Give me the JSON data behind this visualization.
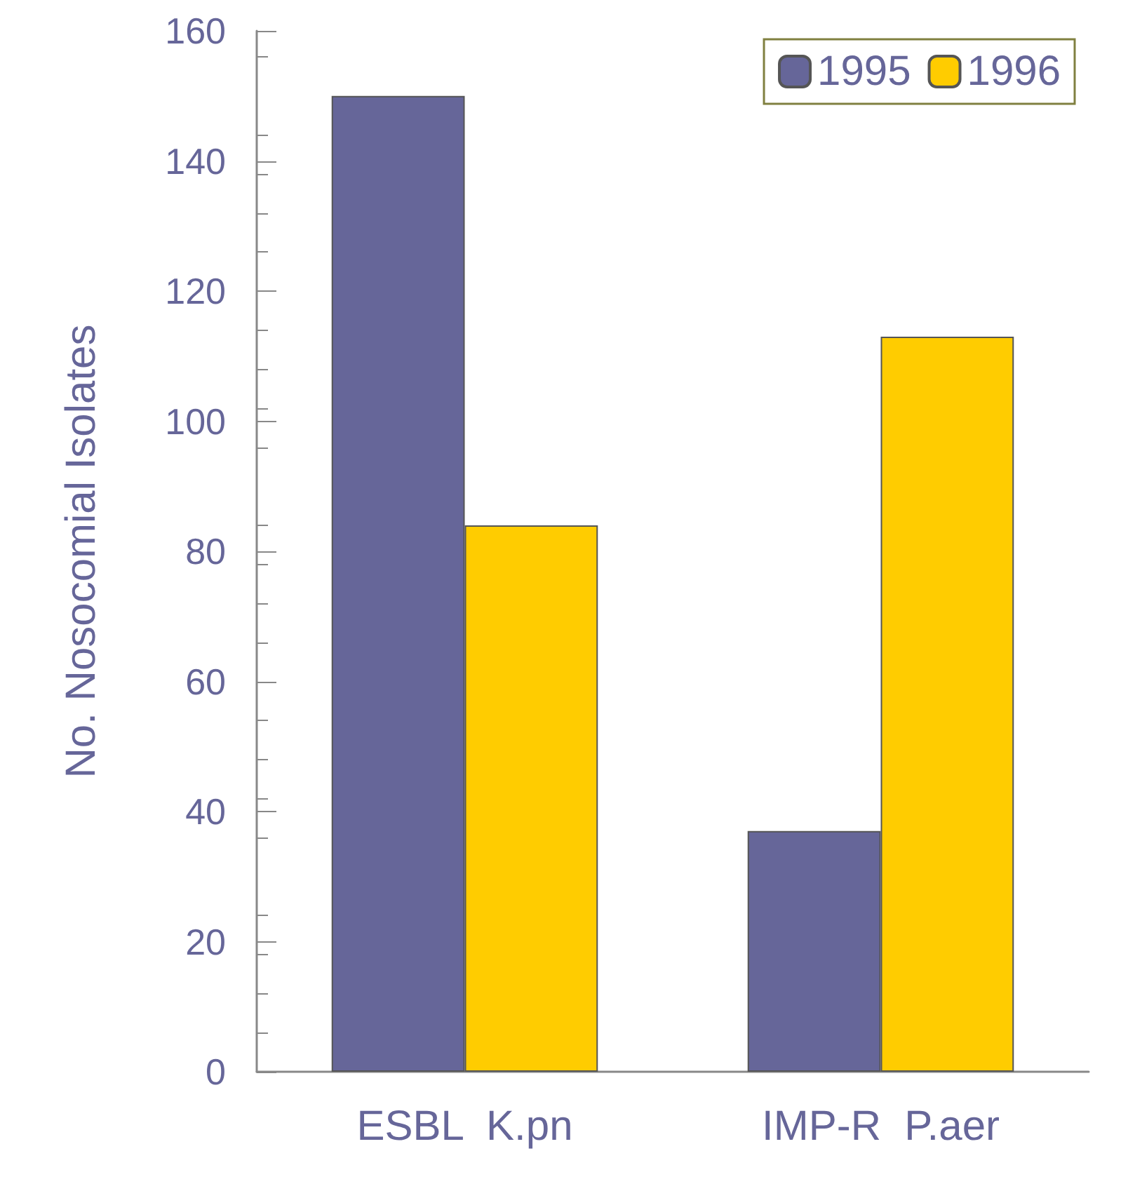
{
  "chart_data": {
    "type": "bar",
    "ylabel": "No. Nosocomial Isolates",
    "categories": [
      "ESBL  K.pn",
      "IMP-R  P.aer"
    ],
    "series": [
      {
        "name": "1995",
        "color": "#666699",
        "values": [
          150,
          37
        ]
      },
      {
        "name": "1996",
        "color": "#ffcc00",
        "values": [
          84,
          113
        ]
      }
    ],
    "ylim": [
      0,
      160
    ],
    "yticks": [
      0,
      20,
      40,
      60,
      80,
      100,
      120,
      140,
      160
    ],
    "grid": false,
    "legend": "top right"
  }
}
